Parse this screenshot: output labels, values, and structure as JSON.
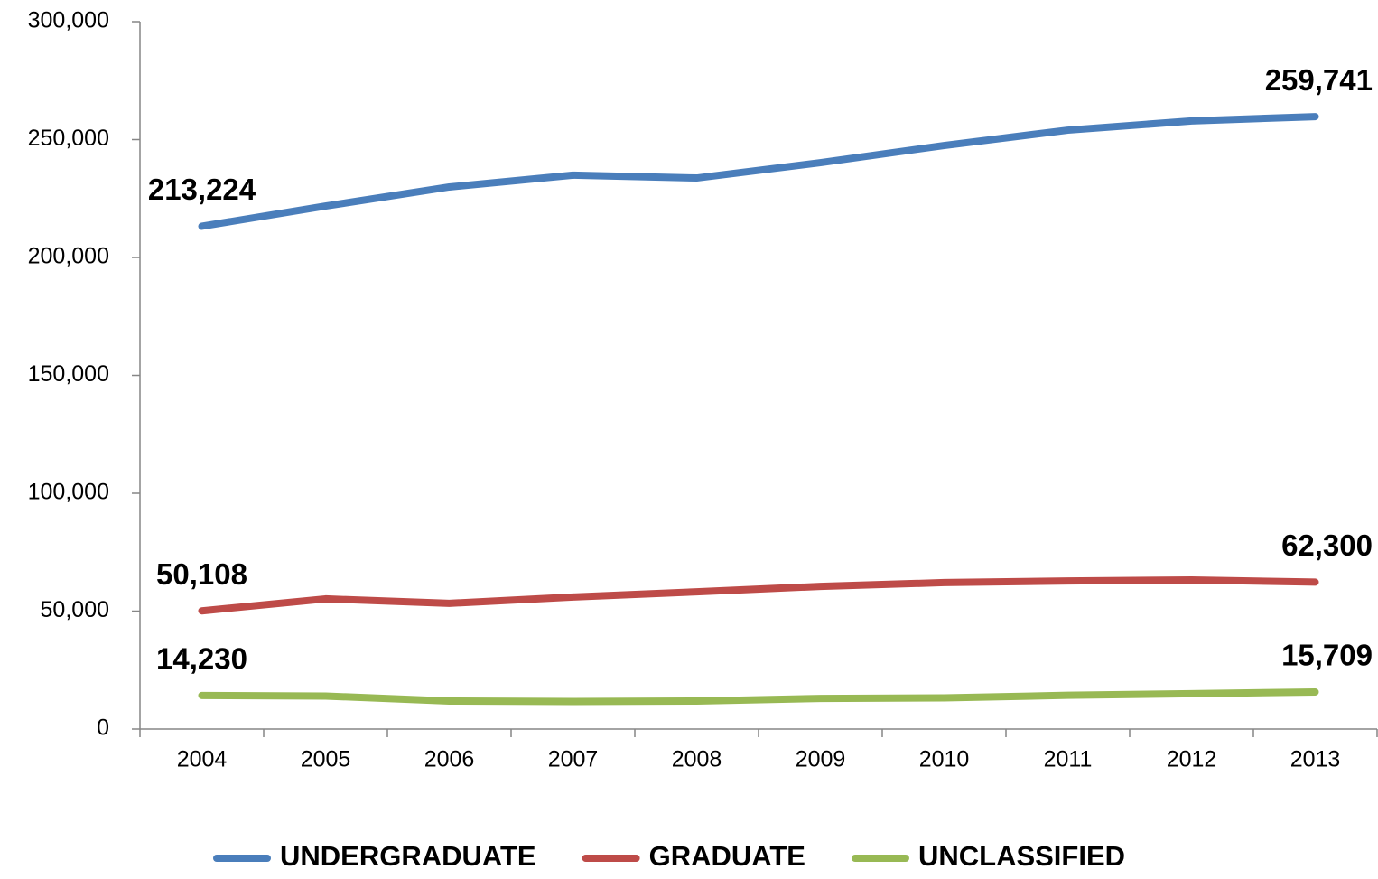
{
  "chart_data": {
    "type": "line",
    "categories": [
      "2004",
      "2005",
      "2006",
      "2007",
      "2008",
      "2009",
      "2010",
      "2011",
      "2012",
      "2013"
    ],
    "series": [
      {
        "name": "UNDERGRADUATE",
        "color": "#4a7ebb",
        "values": [
          213224,
          221800,
          229900,
          234900,
          233700,
          240200,
          247500,
          254000,
          257900,
          259741
        ],
        "value_labels": [
          "213,224",
          null,
          null,
          null,
          null,
          null,
          null,
          null,
          null,
          "259,741"
        ]
      },
      {
        "name": "GRADUATE",
        "color": "#be4b48",
        "values": [
          50108,
          55200,
          53300,
          56000,
          58200,
          60500,
          62100,
          62800,
          63200,
          62300
        ],
        "value_labels": [
          "50,108",
          null,
          null,
          null,
          null,
          null,
          null,
          null,
          null,
          "62,300"
        ]
      },
      {
        "name": "UNCLASSIFIED",
        "color": "#98b954",
        "values": [
          14230,
          14000,
          11900,
          11700,
          11900,
          13000,
          13200,
          14300,
          15000,
          15709
        ],
        "value_labels": [
          "14,230",
          null,
          null,
          null,
          null,
          null,
          null,
          null,
          null,
          "15,709"
        ]
      }
    ],
    "ylim": [
      0,
      300000
    ],
    "yticks": [
      0,
      {
        "value": 50000,
        "label": "50,000"
      },
      {
        "value": 100000,
        "label": "100,000"
      },
      {
        "value": 150000,
        "label": "150,000"
      },
      {
        "value": 200000,
        "label": "200,000"
      },
      {
        "value": 250000,
        "label": "250,000"
      },
      {
        "value": 300000,
        "label": "300,000"
      }
    ],
    "grid": false,
    "legend": "bottom"
  }
}
